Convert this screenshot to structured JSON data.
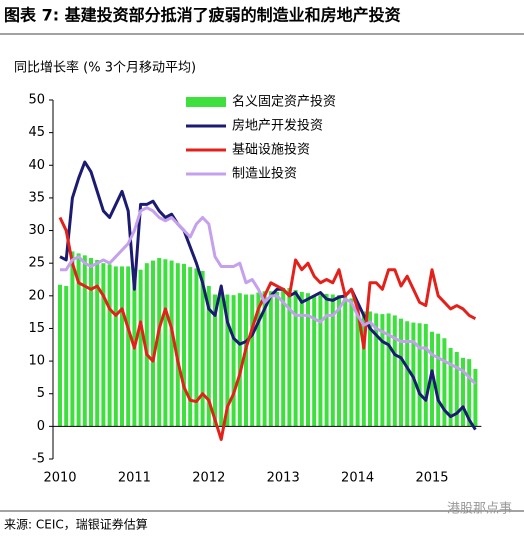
{
  "chart_data": {
    "type": "bar",
    "title": "图表 7: 基建投资部分抵消了疲弱的制造业和房地产投资",
    "y_label": "同比增长率 (% 3个月移动平均)",
    "source": "来源: CEIC，瑞银证券估算",
    "watermark": "港股那点事",
    "categories": [
      "2010",
      null,
      null,
      null,
      null,
      null,
      null,
      null,
      null,
      null,
      null,
      null,
      "2011",
      null,
      null,
      null,
      null,
      null,
      null,
      null,
      null,
      null,
      null,
      null,
      "2012",
      null,
      null,
      null,
      null,
      null,
      null,
      null,
      null,
      null,
      null,
      null,
      "2013",
      null,
      null,
      null,
      null,
      null,
      null,
      null,
      null,
      null,
      null,
      null,
      "2014",
      null,
      null,
      null,
      null,
      null,
      null,
      null,
      null,
      null,
      null,
      null,
      "2015",
      null,
      null,
      null,
      null,
      null,
      null,
      null
    ],
    "ylim": [
      -5,
      50
    ],
    "yticks": [
      -5,
      0,
      5,
      10,
      15,
      20,
      25,
      30,
      35,
      40,
      45,
      50
    ],
    "series": [
      {
        "name": "名义固定资产投资",
        "type": "bar",
        "color": "#3de03d",
        "values": [
          21.7,
          21.5,
          26.8,
          26.5,
          26.2,
          25.8,
          25.5,
          25.0,
          24.8,
          24.5,
          24.5,
          24.5,
          23.5,
          24.0,
          25.0,
          25.4,
          25.8,
          25.6,
          25.4,
          25.0,
          24.9,
          24.4,
          24.2,
          23.8,
          21.5,
          20.2,
          20.9,
          20.2,
          20.1,
          20.4,
          20.2,
          20.2,
          20.5,
          20.7,
          20.7,
          20.6,
          21.2,
          21.2,
          20.9,
          20.6,
          20.4,
          20.1,
          20.1,
          20.3,
          20.2,
          20.1,
          19.9,
          19.6,
          17.9,
          17.6,
          17.6,
          17.3,
          17.2,
          17.3,
          17.0,
          16.5,
          16.1,
          15.9,
          15.8,
          15.7,
          14.5,
          14.2,
          13.5,
          12.0,
          11.4,
          10.5,
          10.3,
          8.8
        ]
      },
      {
        "name": "房地产开发投资",
        "type": "line",
        "color": "#1b1b72",
        "values": [
          26,
          25.5,
          35,
          38,
          40.5,
          39,
          36,
          33,
          32,
          34,
          36,
          33,
          21,
          34,
          34,
          34.5,
          33,
          32,
          32.5,
          31,
          30,
          27.5,
          25,
          22,
          18,
          17,
          21.5,
          16,
          13.5,
          12.6,
          13,
          14,
          16,
          18,
          20,
          21,
          21,
          20,
          20.5,
          19,
          19.5,
          20,
          20.5,
          19.5,
          19.3,
          19.8,
          20,
          21,
          19,
          17,
          15,
          14,
          13,
          12.5,
          11,
          10.5,
          9,
          7.5,
          5,
          4,
          8.5,
          4,
          2.5,
          1.5,
          2,
          3,
          1,
          -0.5
        ]
      },
      {
        "name": "基础设施投资",
        "type": "line",
        "color": "#e4201b",
        "values": [
          32,
          30,
          25,
          22,
          21.5,
          21,
          21.5,
          20,
          18,
          17,
          18,
          15,
          12,
          16,
          11,
          10,
          15,
          18,
          15,
          10,
          6,
          4,
          3.8,
          5,
          4,
          1,
          -2,
          3,
          5,
          8,
          12,
          15,
          18,
          20,
          22,
          21.5,
          21,
          20,
          25.5,
          24,
          25,
          23,
          22,
          22.5,
          22,
          24,
          20,
          21,
          18,
          12,
          22,
          22,
          21,
          24,
          24,
          21.5,
          23,
          21,
          19,
          18.5,
          24,
          20,
          19,
          18,
          18.5,
          18,
          17,
          16.5
        ]
      },
      {
        "name": "制造业投资",
        "type": "line",
        "color": "#c5a0ec",
        "values": [
          24,
          24,
          25.5,
          26,
          25,
          24.5,
          25,
          25.5,
          25,
          26,
          27,
          28,
          30,
          33,
          33.5,
          33,
          32,
          31.5,
          32,
          31,
          30,
          29,
          31,
          32,
          31,
          26,
          24.5,
          24.5,
          24.5,
          25,
          22,
          22.5,
          21,
          19,
          20,
          20,
          19,
          18,
          17,
          17,
          17,
          16.5,
          16,
          17,
          17,
          18,
          19.5,
          19,
          17,
          15.5,
          16,
          15,
          14.5,
          14,
          13.5,
          13,
          13,
          13,
          12,
          12,
          11,
          10.5,
          10,
          9.5,
          9,
          8.5,
          7.5,
          6.5
        ]
      }
    ]
  }
}
